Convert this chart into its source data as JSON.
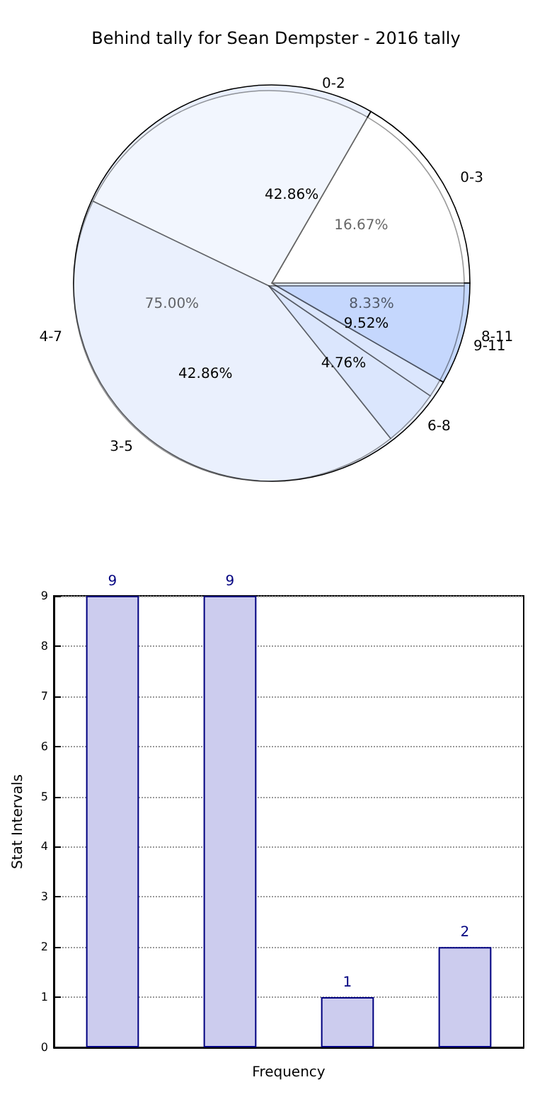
{
  "chart_data": [
    {
      "type": "pie",
      "title": "Behind tally for Sean Dempster - 2016 tally",
      "categories": [
        "0-3",
        "4-7",
        "8-11"
      ],
      "values": [
        16.67,
        75.0,
        8.33
      ],
      "colors": [
        "#ffffff",
        "#eaf0fd",
        "#c5d8fd"
      ],
      "value_labels": [
        "16.67%",
        "75.00%",
        "8.33%"
      ]
    },
    {
      "type": "pie",
      "categories": [
        "0-2",
        "3-5",
        "6-8",
        "9-11"
      ],
      "values": [
        42.86,
        42.86,
        4.76,
        9.52
      ],
      "colors": [
        "#ffffff",
        "#eaf0fd",
        "#c5d8fd",
        "#c5d8fd"
      ],
      "value_labels": [
        "42.86%",
        "42.86%",
        "4.76%",
        "9.52%"
      ]
    },
    {
      "type": "bar",
      "categories": [
        null,
        null,
        null,
        null
      ],
      "values": [
        9,
        9,
        1,
        2
      ],
      "color": "#ccccee",
      "xlabel": "Frequency",
      "ylabel": "Stat Intervals",
      "ylim": [
        0,
        9
      ],
      "yticks": [
        0,
        1,
        2,
        3,
        4,
        5,
        6,
        7,
        8,
        9
      ],
      "grid": "y",
      "data_labels": true
    }
  ]
}
